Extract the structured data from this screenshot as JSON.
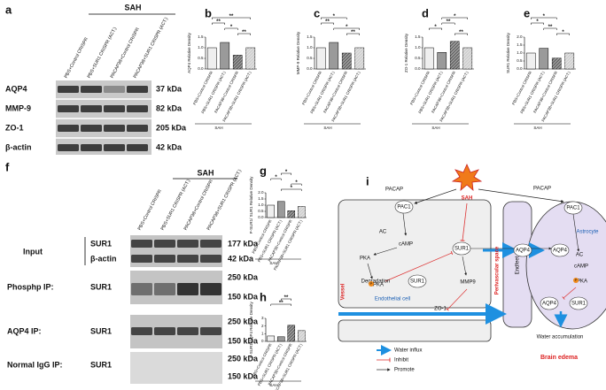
{
  "blot_a": {
    "label": "a",
    "group": "SAH",
    "lanes": [
      "PBS+Control CRISPR",
      "PBS+SUR1 CRISPR (ACT.)",
      "PACAP38+Control CRISPR",
      "PACAP38+SUR1 CRISPR (ACT.)"
    ],
    "rows": [
      {
        "name": "AQP4",
        "size": "37 kDa"
      },
      {
        "name": "MMP-9",
        "size": "82 kDa"
      },
      {
        "name": "ZO-1",
        "size": "205 kDa"
      },
      {
        "name": "β-actin",
        "size": "42 kDa"
      }
    ]
  },
  "chart_data": [
    {
      "type": "bar",
      "panel": "b",
      "ylabel": "AQP4 Relative Density",
      "group": "SAH",
      "categories": [
        "PBS+Control CRISPR",
        "PBS+SUR1 CRISPR (ACT.)",
        "PACAP38+Control CRISPR",
        "PACAP38+SUR1 CRISPR (ACT.)"
      ],
      "values": [
        1.0,
        1.25,
        0.65,
        1.0
      ],
      "colors": [
        "#efefef",
        "#9a9a9a",
        "#6a6a6a",
        "#cfcfcf"
      ],
      "hatch": [
        false,
        false,
        true,
        true
      ],
      "ylim": [
        0,
        1.5
      ],
      "yticks": [
        {
          "value": 0,
          "label": "0.0"
        },
        0.5,
        {
          "value": 1,
          "label": "1.0"
        },
        1.5
      ],
      "annotations": [
        "**",
        "**",
        "*",
        "**"
      ]
    },
    {
      "type": "bar",
      "panel": "c",
      "ylabel": "MMP-9 Relative Density",
      "group": "SAH",
      "categories": [
        "PBS+Control CRISPR",
        "PBS+SUR1 CRISPR (ACT.)",
        "PACAP38+Control CRISPR",
        "PACAP38+SUR1 CRISPR (ACT.)"
      ],
      "values": [
        1.0,
        1.25,
        0.75,
        1.0
      ],
      "colors": [
        "#efefef",
        "#9a9a9a",
        "#6a6a6a",
        "#cfcfcf"
      ],
      "hatch": [
        false,
        false,
        true,
        true
      ],
      "ylim": [
        0,
        1.5
      ],
      "yticks": [
        {
          "value": 0,
          "label": "0.0"
        },
        0.5,
        {
          "value": 1,
          "label": "1.0"
        },
        1.5
      ],
      "annotations": [
        "*",
        "**",
        "*",
        "**"
      ]
    },
    {
      "type": "bar",
      "panel": "d",
      "ylabel": "ZO-1 Relative Density",
      "group": "SAH",
      "categories": [
        "PBS+Control CRISPR",
        "PBS+SUR1 CRISPR (ACT.)",
        "PACAP38+Control CRISPR",
        "PACAP38+SUR1 CRISPR (ACT.)"
      ],
      "values": [
        1.0,
        0.78,
        1.3,
        1.0
      ],
      "colors": [
        "#efefef",
        "#9a9a9a",
        "#6a6a6a",
        "#cfcfcf"
      ],
      "hatch": [
        false,
        false,
        true,
        true
      ],
      "ylim": [
        0,
        1.5
      ],
      "yticks": [
        {
          "value": 0,
          "label": "0.0"
        },
        0.5,
        {
          "value": 1,
          "label": "1.0"
        },
        1.5
      ],
      "annotations": [
        "*",
        "**",
        "*",
        "**"
      ]
    },
    {
      "type": "bar",
      "panel": "e",
      "ylabel": "SUR1 Relative Density",
      "group": "SAH",
      "categories": [
        "PBS+Control CRISPR",
        "PBS+SUR1 CRISPR (ACT.)",
        "PACAP38+Control CRISPR",
        "PACAP38+SUR1 CRISPR (ACT.)"
      ],
      "values": [
        1.0,
        1.3,
        0.68,
        1.0
      ],
      "colors": [
        "#efefef",
        "#9a9a9a",
        "#6a6a6a",
        "#cfcfcf"
      ],
      "hatch": [
        false,
        false,
        true,
        true
      ],
      "ylim": [
        0,
        2
      ],
      "yticks": [
        {
          "value": 0,
          "label": "0.0"
        },
        0.5,
        {
          "value": 1,
          "label": "1.0"
        },
        1.5,
        {
          "value": 2,
          "label": "2.0"
        }
      ],
      "annotations": [
        "*",
        "*",
        "**",
        "*"
      ]
    },
    {
      "type": "bar",
      "panel": "g",
      "ylabel": "P-SUR1/ SUR1 Relative Density",
      "group": "SAH",
      "categories": [
        "PBS+Control CRISPR",
        "PBS+SUR1 CRISPR (ACT.)",
        "PACAP38+Control CRISPR",
        "PACAP38+SUR1 CRISPR (ACT.)"
      ],
      "values": [
        1.0,
        1.3,
        0.55,
        0.9
      ],
      "colors": [
        "#efefef",
        "#9a9a9a",
        "#6a6a6a",
        "#cfcfcf"
      ],
      "hatch": [
        false,
        false,
        true,
        true
      ],
      "ylim": [
        0,
        2
      ],
      "yticks": [
        {
          "value": 0,
          "label": "0.0"
        },
        0.5,
        {
          "value": 1,
          "label": "1.0"
        },
        1.5,
        {
          "value": 2,
          "label": "2.0"
        }
      ],
      "annotations": [
        "*",
        "*",
        "*",
        "*"
      ]
    },
    {
      "type": "bar",
      "panel": "h",
      "ylabel": "P-SUR1/AQP4 Relative Density",
      "group": "SAH",
      "categories": [
        "PBS+Control CRISPR",
        "PBS+SUR1 CRISPR (ACT.)",
        "PACAP38+Control CRISPR",
        "PACAP38+SUR1 CRISPR (ACT.)"
      ],
      "values": [
        0.7,
        0.6,
        2.1,
        1.4
      ],
      "colors": [
        "#efefef",
        "#9a9a9a",
        "#6a6a6a",
        "#cfcfcf"
      ],
      "hatch": [
        false,
        false,
        true,
        true
      ],
      "ylim": [
        0,
        3
      ],
      "yticks": [
        0,
        1,
        2,
        3
      ],
      "annotations": [
        "**",
        "**"
      ]
    }
  ],
  "blot_f": {
    "label": "f",
    "group": "SAH",
    "lanes": [
      "PBS+Control CRISPR",
      "PBS+SUR1 CRISPR (ACT.)",
      "PACAP38+Control CRISPR",
      "PACAP38+SUR1 CRISPR (ACT.)"
    ],
    "sections": [
      {
        "name": "Input",
        "rows": [
          {
            "name": "SUR1",
            "sizes": [
              "177 kDa"
            ]
          },
          {
            "name": "β-actin",
            "sizes": [
              "42 kDa"
            ]
          }
        ]
      },
      {
        "name": "Phosphp IP:",
        "rows": [
          {
            "name": "SUR1",
            "sizes": [
              "250 kDa",
              "150 kDa"
            ]
          }
        ]
      },
      {
        "name": "AQP4 IP:",
        "rows": [
          {
            "name": "SUR1",
            "sizes": [
              "250 kDa",
              "150 kDa"
            ]
          }
        ]
      },
      {
        "name": "Normal IgG IP:",
        "rows": [
          {
            "name": "SUR1",
            "sizes": [
              "250 kDa",
              "150 kDa"
            ]
          }
        ]
      }
    ]
  },
  "diagram_i": {
    "label": "i",
    "nodes": [
      "PACAP",
      "SAH",
      "PACAP",
      "PAC1",
      "PAC1",
      "AC",
      "cAMP",
      "PKA",
      "PKA",
      "SUR1",
      "SUR1",
      "Degradation",
      "MMP9",
      "Endothelial cell",
      "ZO-1",
      "Vessel",
      "Perivascular space",
      "Endfeet",
      "AQP4",
      "AQP4",
      "Astrocyte",
      "AC",
      "cAMP",
      "PKA",
      "AQP4",
      "SUR1",
      "Water accumulation",
      "Brain edema",
      "P",
      "P"
    ],
    "legend": [
      "Water influx",
      "Inhibit",
      "Promote"
    ]
  }
}
